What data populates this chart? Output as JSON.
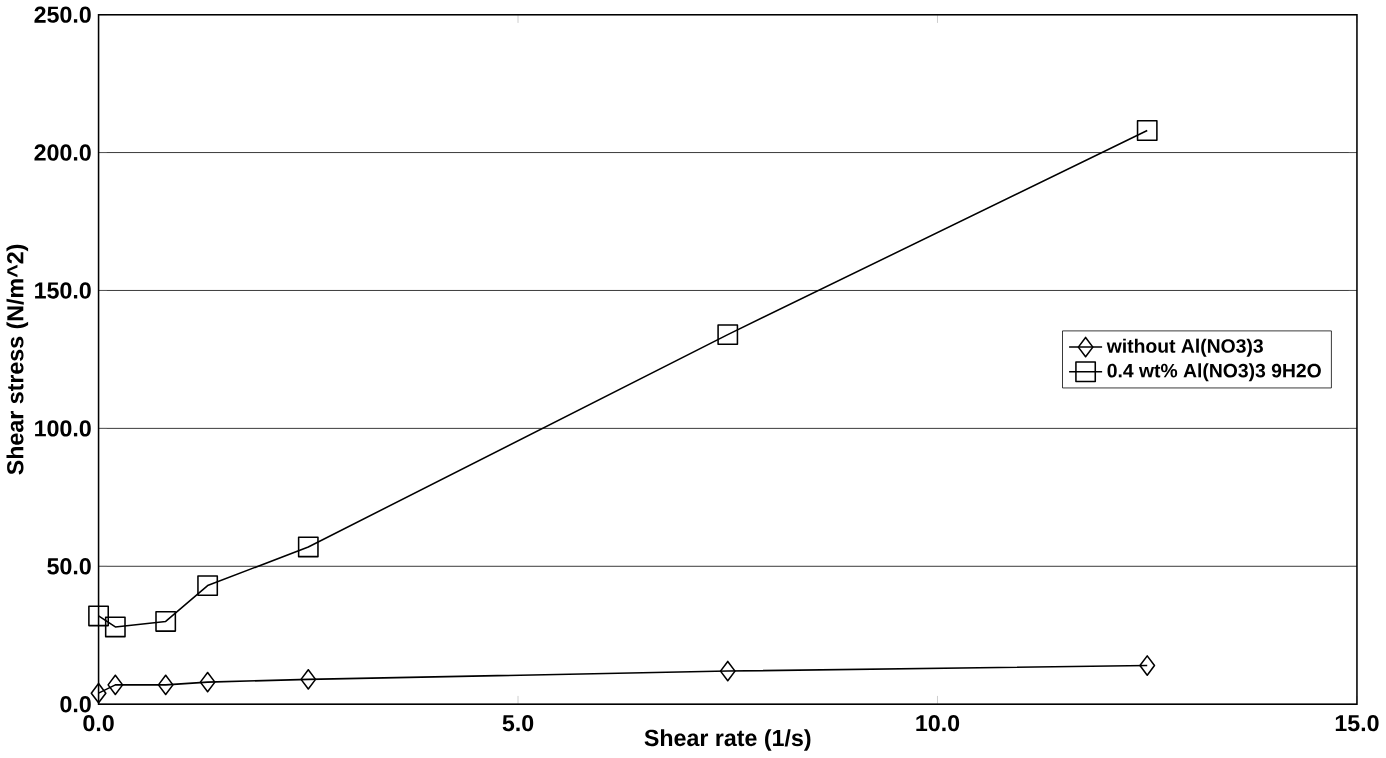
{
  "chart_data": {
    "type": "line",
    "xlabel": "Shear rate (1/s)",
    "ylabel": "Shear stress (N/m^2)",
    "xlim": [
      0,
      15
    ],
    "ylim": [
      0,
      250
    ],
    "xticks": [
      {
        "value": 0,
        "label": "0.0"
      },
      {
        "value": 5,
        "label": "5.0"
      },
      {
        "value": 10,
        "label": "10.0"
      },
      {
        "value": 15,
        "label": "15.0"
      }
    ],
    "yticks": [
      {
        "value": 0,
        "label": "0.0"
      },
      {
        "value": 50,
        "label": "50.0"
      },
      {
        "value": 100,
        "label": "100.0"
      },
      {
        "value": 150,
        "label": "150.0"
      },
      {
        "value": 200,
        "label": "200.0"
      },
      {
        "value": 250,
        "label": "250.0"
      }
    ],
    "grid": "y",
    "legend": "right",
    "series": [
      {
        "name": "without Al(NO3)3",
        "color": "#000000",
        "marker": "diamond",
        "x": [
          0.0,
          0.2,
          0.8,
          1.3,
          2.5,
          7.5,
          12.5
        ],
        "values": [
          4,
          7,
          7,
          8,
          9,
          12,
          14
        ]
      },
      {
        "name": "0.4 wt% Al(NO3)3 9H2O",
        "color": "#000000",
        "marker": "square",
        "x": [
          0.0,
          0.2,
          0.8,
          1.3,
          2.5,
          7.5,
          12.5
        ],
        "values": [
          32,
          28,
          30,
          43,
          57,
          134,
          208
        ]
      }
    ]
  }
}
